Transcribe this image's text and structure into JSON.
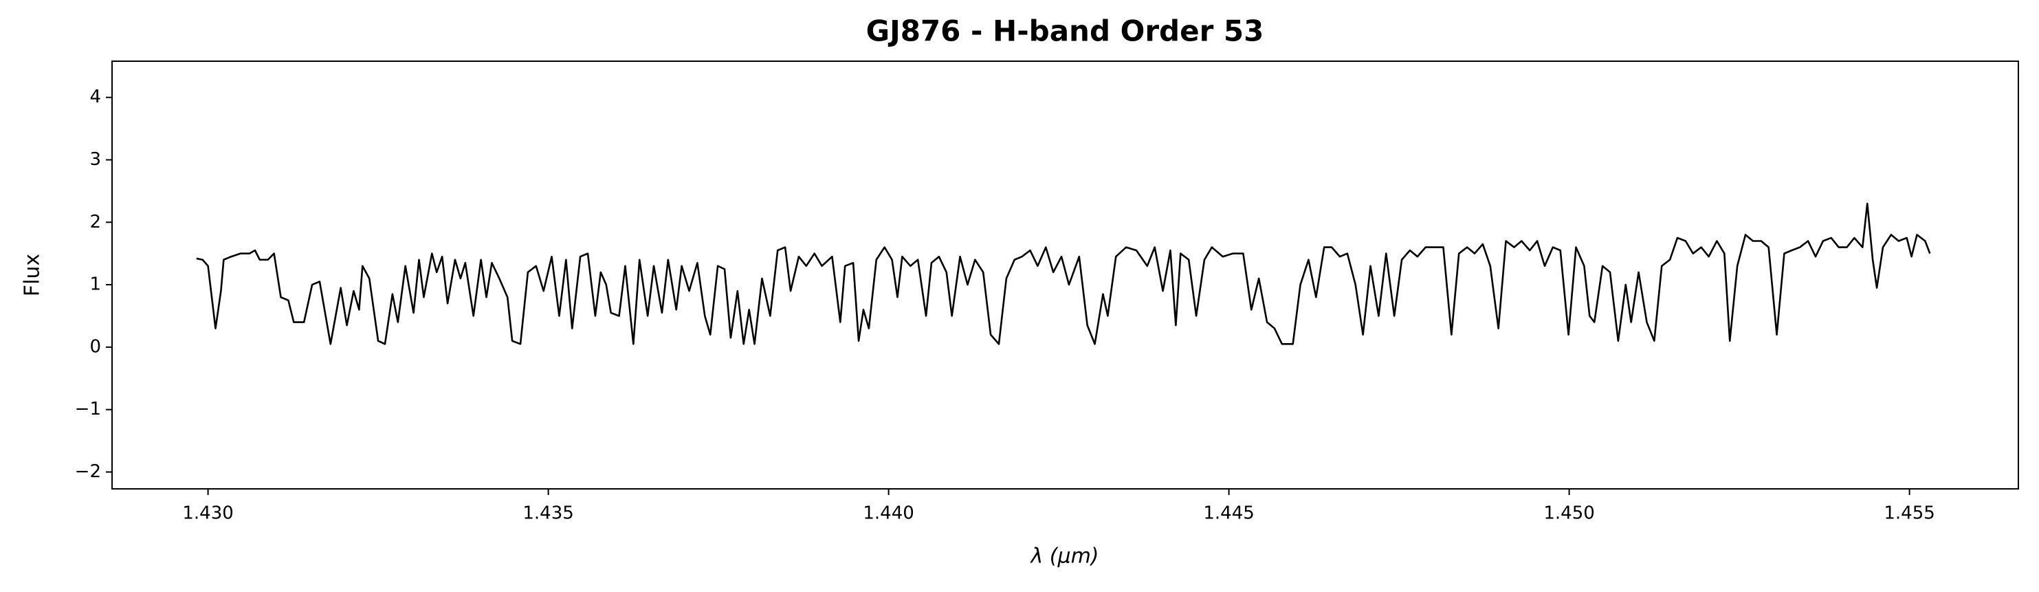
{
  "chart_data": {
    "type": "line",
    "title": "GJ876 - H-band Order 53",
    "xlabel": "λ (μm)",
    "ylabel": "Flux",
    "color": "#000000",
    "xlim": [
      1.42859,
      1.4566
    ],
    "ylim": [
      -2.27,
      4.58
    ],
    "xticks": [
      {
        "value": 1.43,
        "label": "1.430"
      },
      {
        "value": 1.435,
        "label": "1.435"
      },
      {
        "value": 1.44,
        "label": "1.440"
      },
      {
        "value": 1.445,
        "label": "1.445"
      },
      {
        "value": 1.45,
        "label": "1.450"
      },
      {
        "value": 1.455,
        "label": "1.455"
      }
    ],
    "yticks": [
      {
        "value": -2,
        "label": "−2"
      },
      {
        "value": -1,
        "label": "−1"
      },
      0,
      1,
      2,
      3,
      4
    ],
    "grid": false,
    "x": [
      1.42983,
      1.42992,
      1.43,
      1.43011,
      1.43019,
      1.43023,
      1.43034,
      1.43048,
      1.43061,
      1.43069,
      1.43076,
      1.43088,
      1.43097,
      1.43107,
      1.43118,
      1.43126,
      1.43141,
      1.43153,
      1.43164,
      1.4318,
      1.43195,
      1.43204,
      1.43214,
      1.43222,
      1.43227,
      1.43237,
      1.4325,
      1.4326,
      1.43271,
      1.43279,
      1.4329,
      1.43302,
      1.4331,
      1.43317,
      1.43329,
      1.43336,
      1.43344,
      1.43352,
      1.43363,
      1.43371,
      1.43378,
      1.4339,
      1.43401,
      1.43409,
      1.43417,
      1.43428,
      1.4344,
      1.43447,
      1.43459,
      1.4347,
      1.43482,
      1.43493,
      1.43505,
      1.43516,
      1.43526,
      1.43535,
      1.43547,
      1.43558,
      1.43569,
      1.43577,
      1.43585,
      1.43592,
      1.43604,
      1.43613,
      1.43625,
      1.43634,
      1.43646,
      1.43655,
      1.43667,
      1.43676,
      1.43688,
      1.43696,
      1.43707,
      1.43719,
      1.4373,
      1.43738,
      1.43749,
      1.43759,
      1.43768,
      1.43778,
      1.43787,
      1.43795,
      1.43803,
      1.43814,
      1.43826,
      1.43837,
      1.43848,
      1.43856,
      1.43868,
      1.43879,
      1.43891,
      1.43902,
      1.43917,
      1.43929,
      1.43936,
      1.43948,
      1.43956,
      1.43963,
      1.43971,
      1.43982,
      1.43994,
      1.44005,
      1.44013,
      1.4402,
      1.44032,
      1.44043,
      1.44055,
      1.44063,
      1.44074,
      1.44085,
      1.44093,
      1.44105,
      1.44116,
      1.44127,
      1.44139,
      1.4415,
      1.44162,
      1.44173,
      1.44185,
      1.44196,
      1.44208,
      1.44219,
      1.44231,
      1.44242,
      1.44254,
      1.44265,
      1.4428,
      1.44292,
      1.44303,
      1.44315,
      1.44322,
      1.44334,
      1.44349,
      1.44364,
      1.4438,
      1.44391,
      1.44403,
      1.44414,
      1.44422,
      1.44429,
      1.44441,
      1.44452,
      1.44464,
      1.44475,
      1.44491,
      1.44506,
      1.44521,
      1.44533,
      1.44544,
      1.44556,
      1.44567,
      1.44578,
      1.44594,
      1.44605,
      1.44617,
      1.44628,
      1.4464,
      1.44651,
      1.44663,
      1.44674,
      1.44686,
      1.44697,
      1.44708,
      1.4472,
      1.44731,
      1.44743,
      1.44754,
      1.44766,
      1.44777,
      1.44789,
      1.448,
      1.44815,
      1.44827,
      1.44838,
      1.4485,
      1.44861,
      1.44873,
      1.44884,
      1.44896,
      1.44907,
      1.44919,
      1.4493,
      1.44942,
      1.44953,
      1.44964,
      1.44976,
      1.44987,
      1.44999,
      1.4501,
      1.45022,
      1.4503,
      1.45037,
      1.45049,
      1.4506,
      1.45072,
      1.45083,
      1.45091,
      1.45102,
      1.45114,
      1.45125,
      1.45136,
      1.45148,
      1.45159,
      1.45171,
      1.45182,
      1.45194,
      1.45205,
      1.45217,
      1.45228,
      1.45236,
      1.45247,
      1.45259,
      1.4527,
      1.45282,
      1.45293,
      1.45305,
      1.45316,
      1.45327,
      1.45339,
      1.45351,
      1.45362,
      1.45373,
      1.45385,
      1.45396,
      1.45408,
      1.45419,
      1.45431,
      1.45438,
      1.45446,
      1.45452,
      1.45461,
      1.45473,
      1.45484,
      1.45496,
      1.45503,
      1.45511,
      1.45523,
      1.4553
    ],
    "values": [
      1.42,
      1.4,
      1.3,
      0.3,
      0.9,
      1.4,
      1.45,
      1.5,
      1.5,
      1.55,
      1.4,
      1.4,
      1.5,
      0.8,
      0.75,
      0.4,
      0.4,
      1.0,
      1.05,
      0.05,
      0.95,
      0.35,
      0.9,
      0.6,
      1.3,
      1.1,
      0.1,
      0.05,
      0.85,
      0.4,
      1.3,
      0.55,
      1.4,
      0.8,
      1.5,
      1.2,
      1.45,
      0.7,
      1.4,
      1.1,
      1.35,
      0.5,
      1.4,
      0.8,
      1.35,
      1.1,
      0.8,
      0.1,
      0.05,
      1.2,
      1.3,
      0.9,
      1.45,
      0.5,
      1.4,
      0.3,
      1.45,
      1.5,
      0.5,
      1.2,
      1.0,
      0.55,
      0.5,
      1.3,
      0.05,
      1.4,
      0.5,
      1.3,
      0.55,
      1.4,
      0.6,
      1.3,
      0.9,
      1.35,
      0.5,
      0.2,
      1.3,
      1.25,
      0.15,
      0.9,
      0.05,
      0.6,
      0.05,
      1.1,
      0.5,
      1.55,
      1.6,
      0.9,
      1.45,
      1.3,
      1.5,
      1.3,
      1.45,
      0.4,
      1.3,
      1.35,
      0.1,
      0.6,
      0.3,
      1.4,
      1.6,
      1.4,
      0.8,
      1.45,
      1.3,
      1.4,
      0.5,
      1.35,
      1.45,
      1.2,
      0.5,
      1.45,
      1.0,
      1.4,
      1.2,
      0.2,
      0.05,
      1.1,
      1.4,
      1.45,
      1.55,
      1.3,
      1.6,
      1.2,
      1.45,
      1.0,
      1.45,
      0.35,
      0.05,
      0.85,
      0.5,
      1.45,
      1.6,
      1.55,
      1.3,
      1.6,
      0.9,
      1.55,
      0.35,
      1.5,
      1.4,
      0.5,
      1.4,
      1.6,
      1.45,
      1.5,
      1.5,
      0.6,
      1.1,
      0.4,
      0.3,
      0.05,
      0.05,
      1.0,
      1.4,
      0.8,
      1.6,
      1.6,
      1.45,
      1.5,
      1.0,
      0.2,
      1.3,
      0.5,
      1.5,
      0.5,
      1.4,
      1.55,
      1.45,
      1.6,
      1.6,
      1.6,
      0.2,
      1.5,
      1.6,
      1.5,
      1.65,
      1.3,
      0.3,
      1.7,
      1.6,
      1.7,
      1.55,
      1.7,
      1.3,
      1.6,
      1.55,
      0.2,
      1.6,
      1.3,
      0.5,
      0.4,
      1.3,
      1.2,
      0.1,
      1.0,
      0.4,
      1.2,
      0.4,
      0.1,
      1.3,
      1.4,
      1.75,
      1.7,
      1.5,
      1.6,
      1.45,
      1.7,
      1.5,
      0.1,
      1.3,
      1.8,
      1.7,
      1.7,
      1.6,
      0.2,
      1.5,
      1.55,
      1.6,
      1.7,
      1.45,
      1.7,
      1.75,
      1.6,
      1.6,
      1.75,
      1.6,
      2.3,
      1.4,
      0.95,
      1.6,
      1.8,
      1.7,
      1.75,
      1.45,
      1.8,
      1.7,
      1.5
    ]
  }
}
